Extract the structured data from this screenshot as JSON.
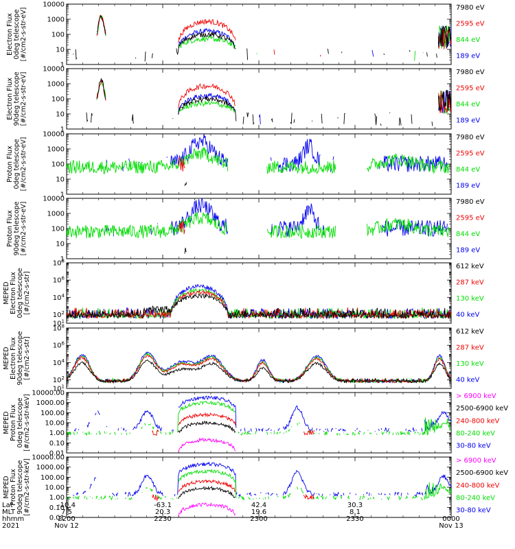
{
  "colors": {
    "black": "#000000",
    "red": "#ee0000",
    "green": "#00dd00",
    "blue": "#0000ee",
    "magenta": "#ff00ff"
  },
  "x_axis": {
    "row_labels": [
      "Lat",
      "MLT",
      "hhmm",
      "2021"
    ],
    "ticks": [
      {
        "lat": "-10.4",
        "mlt": "7.5",
        "time": "2200",
        "date": "Nov 12"
      },
      {
        "lat": "-63.1",
        "mlt": "20.3",
        "time": "2230",
        "date": ""
      },
      {
        "lat": "42.4",
        "mlt": "19.6",
        "time": "2300",
        "date": ""
      },
      {
        "lat": "30.3",
        "mlt": "8.1",
        "time": "2330",
        "date": ""
      },
      {
        "lat": "",
        "mlt": "",
        "time": "0000",
        "date": "Nov 13"
      }
    ]
  },
  "chart_data": [
    {
      "type": "line",
      "ylabel": [
        "Electron Flux",
        "0deg telescope",
        "[#/cm2-s-str-eV]"
      ],
      "yscale": "log",
      "ylim": [
        1,
        10000
      ],
      "ticks": [
        "1",
        "10",
        "100",
        "1000",
        "10000"
      ],
      "legend": [
        {
          "label": "7980 eV",
          "color": "black"
        },
        {
          "label": "2595 eV",
          "color": "red"
        },
        {
          "label": "844 eV",
          "color": "green"
        },
        {
          "label": "189 eV",
          "color": "blue"
        }
      ]
    },
    {
      "type": "line",
      "ylabel": [
        "Electron Flux",
        "90deg telescope",
        "[#/cm2-s-str-eV]"
      ],
      "yscale": "log",
      "ylim": [
        1,
        10000
      ],
      "ticks": [
        "1",
        "10",
        "100",
        "1000",
        "10000"
      ],
      "legend": [
        {
          "label": "7980 eV",
          "color": "black"
        },
        {
          "label": "2595 eV",
          "color": "red"
        },
        {
          "label": "844 eV",
          "color": "green"
        },
        {
          "label": "189 eV",
          "color": "blue"
        }
      ]
    },
    {
      "type": "line",
      "ylabel": [
        "Proton Flux",
        "0deg telescope",
        "[#/cm2-s-str-eV]"
      ],
      "yscale": "log",
      "ylim": [
        1,
        10000
      ],
      "ticks": [
        "1",
        "10",
        "100",
        "1000",
        "10000"
      ],
      "legend": [
        {
          "label": "7980 eV",
          "color": "black"
        },
        {
          "label": "2595 eV",
          "color": "red"
        },
        {
          "label": "844 eV",
          "color": "green"
        },
        {
          "label": "189 eV",
          "color": "blue"
        }
      ]
    },
    {
      "type": "line",
      "ylabel": [
        "Proton Flux",
        "90deg telescope",
        "[#/cm2-s-str-eV]"
      ],
      "yscale": "log",
      "ylim": [
        1,
        10000
      ],
      "ticks": [
        "1",
        "10",
        "100",
        "1000",
        "10000"
      ],
      "legend": [
        {
          "label": "7980 eV",
          "color": "black"
        },
        {
          "label": "2595 eV",
          "color": "red"
        },
        {
          "label": "844 eV",
          "color": "green"
        },
        {
          "label": "189 eV",
          "color": "blue"
        }
      ]
    },
    {
      "type": "line",
      "ylabel": [
        "MEPED",
        "Electron Flux",
        "0deg telescope",
        "[#/cm2-s-str]"
      ],
      "yscale": "log",
      "ylim": [
        10,
        100000000
      ],
      "ticks": [
        "10^1",
        "10^2",
        "10^4",
        "10^6",
        "10^8"
      ],
      "legend": [
        {
          "label": "612 keV",
          "color": "black"
        },
        {
          "label": "287 keV",
          "color": "red"
        },
        {
          "label": "130 keV",
          "color": "green"
        },
        {
          "label": "40 keV",
          "color": "blue"
        }
      ]
    },
    {
      "type": "line",
      "ylabel": [
        "MEPED",
        "Electron Flux",
        "90deg telescope",
        "[#/cm2-s-str]"
      ],
      "yscale": "log",
      "ylim": [
        10,
        100000000
      ],
      "ticks": [
        "10^1",
        "10^2",
        "10^4",
        "10^6",
        "10^8"
      ],
      "legend": [
        {
          "label": "612 keV",
          "color": "black"
        },
        {
          "label": "287 keV",
          "color": "red"
        },
        {
          "label": "130 keV",
          "color": "green"
        },
        {
          "label": "40 keV",
          "color": "blue"
        }
      ]
    },
    {
      "type": "line",
      "ylabel": [
        "MEPED",
        "Proton Flux",
        "0deg telescope",
        "[#/cm2-s-str-keV]"
      ],
      "yscale": "log",
      "ylim": [
        0.01,
        10000
      ],
      "ticks": [
        "0.01",
        "0.10",
        "1.00",
        "10.00",
        "100.00",
        "1000.00",
        "10000.00"
      ],
      "legend": [
        {
          "label": "> 6900 keV",
          "color": "magenta"
        },
        {
          "label": "2500-6900 keV",
          "color": "black"
        },
        {
          "label": "240-800 keV",
          "color": "red"
        },
        {
          "label": "80-240 keV",
          "color": "green"
        },
        {
          "label": "30-80 keV",
          "color": "blue"
        }
      ]
    },
    {
      "type": "line",
      "ylabel": [
        "MEPED",
        "Proton Flux",
        "90deg telescope",
        "[#/cm2-s-str-keV]"
      ],
      "yscale": "log",
      "ylim": [
        0.01,
        10000
      ],
      "ticks": [
        "0.01",
        "0.10",
        "1.00",
        "10.00",
        "100.00",
        "1000.00",
        "10000.00"
      ],
      "legend": [
        {
          "label": "> 6900 keV",
          "color": "magenta"
        },
        {
          "label": "2500-6900 keV",
          "color": "black"
        },
        {
          "label": "240-800 keV",
          "color": "red"
        },
        {
          "label": "80-240 keV",
          "color": "green"
        },
        {
          "label": "30-80 keV",
          "color": "blue"
        }
      ]
    }
  ]
}
